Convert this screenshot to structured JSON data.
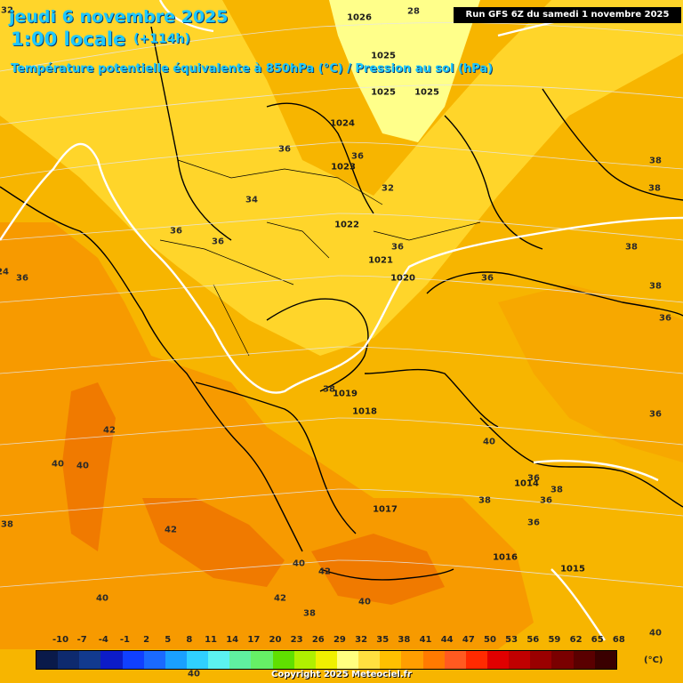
{
  "header": {
    "date_line": "jeudi 6 novembre 2025",
    "time_line": "1:00 locale",
    "lead_time": "(+114h)",
    "variable_line": "Température potentielle équivalente à 850hPa (°C) / Pression au sol (hPa)",
    "run_info": "Run GFS 6Z du samedi 1 novembre 2025"
  },
  "colors": {
    "background_warm": "#f7b500",
    "deep_orange": "#f07a00",
    "mid_orange": "#f79a00",
    "yellow": "#ffdd3c",
    "pale_yellow": "#ffff8a",
    "title_color": "#1ec8ff",
    "isoline_0": "#ffffff"
  },
  "temperature_labels": [
    "32",
    "28",
    "36",
    "36",
    "34",
    "32",
    "36",
    "36",
    "24",
    "36",
    "36",
    "38",
    "38",
    "42",
    "40",
    "40",
    "38",
    "38",
    "36",
    "42",
    "40",
    "42",
    "42",
    "40",
    "38",
    "40",
    "40",
    "38",
    "36",
    "38",
    "36",
    "38",
    "38",
    "36",
    "36",
    "36",
    "40",
    "40"
  ],
  "pressure_labels": [
    "1026",
    "1025",
    "1025",
    "1025",
    "1024",
    "1023",
    "1022",
    "1021",
    "1020",
    "1019",
    "1018",
    "1017",
    "1016",
    "1015",
    "1014"
  ],
  "legend": {
    "ticks": [
      "-10",
      "-7",
      "-4",
      "-1",
      "2",
      "5",
      "8",
      "11",
      "14",
      "17",
      "20",
      "23",
      "26",
      "29",
      "32",
      "35",
      "38",
      "41",
      "44",
      "47",
      "50",
      "53",
      "56",
      "59",
      "62",
      "65",
      "68"
    ],
    "unit": "(°C)",
    "swatches": [
      "#0a1a4a",
      "#0e2a6e",
      "#123a8e",
      "#0c1cc8",
      "#1040ff",
      "#1a6aff",
      "#1aa0ff",
      "#30d0ff",
      "#5cf2f0",
      "#60f0a0",
      "#66f066",
      "#60e000",
      "#b0f000",
      "#f0f000",
      "#ffff80",
      "#ffe040",
      "#ffc000",
      "#ff9e00",
      "#ff7a00",
      "#ff5a20",
      "#ff2a00",
      "#e00000",
      "#c00000",
      "#9a0000",
      "#7a0000",
      "#5a0000",
      "#3a0000"
    ]
  },
  "footer": {
    "copyright": "Copyright 2025 Meteociel.fr"
  }
}
